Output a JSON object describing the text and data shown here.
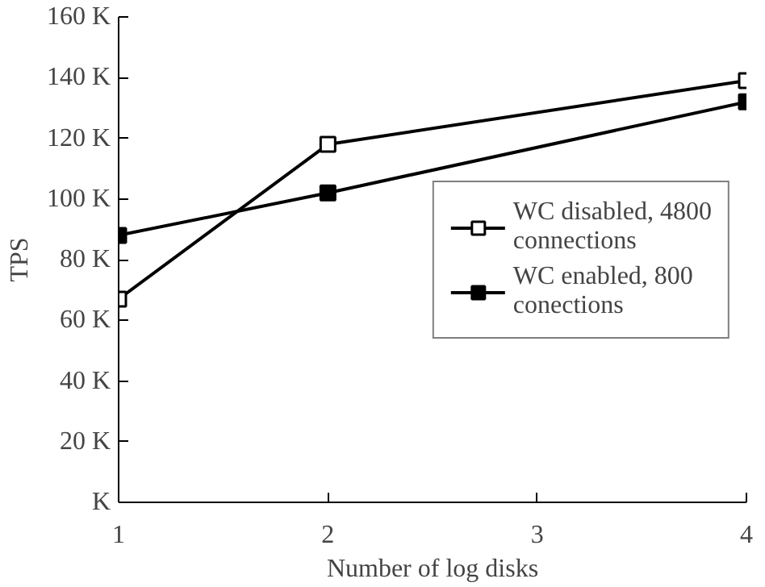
{
  "chart_data": {
    "type": "line",
    "xlabel": "Number of log disks",
    "ylabel": "TPS",
    "x": [
      1,
      2,
      4
    ],
    "xlim": [
      1,
      4
    ],
    "xticks": [
      1,
      2,
      3,
      4
    ],
    "ylim": [
      0,
      160000
    ],
    "yticks": [
      {
        "value": 0,
        "label": "K"
      },
      {
        "value": 20000,
        "label": "20 K"
      },
      {
        "value": 40000,
        "label": "40 K"
      },
      {
        "value": 60000,
        "label": "60 K"
      },
      {
        "value": 80000,
        "label": "80 K"
      },
      {
        "value": 100000,
        "label": "100 K"
      },
      {
        "value": 120000,
        "label": "120 K"
      },
      {
        "value": 140000,
        "label": "140 K"
      },
      {
        "value": 160000,
        "label": "160 K"
      }
    ],
    "series": [
      {
        "name": "WC disabled, 4800 connections",
        "color": "#000000",
        "values": [
          67000,
          118000,
          139000
        ]
      },
      {
        "name": "WC enabled, 800 conections",
        "color": "#000000",
        "values": [
          88000,
          102000,
          132000
        ]
      }
    ],
    "marker": "square",
    "line_style": "solid",
    "grid": false,
    "legend": "right"
  }
}
